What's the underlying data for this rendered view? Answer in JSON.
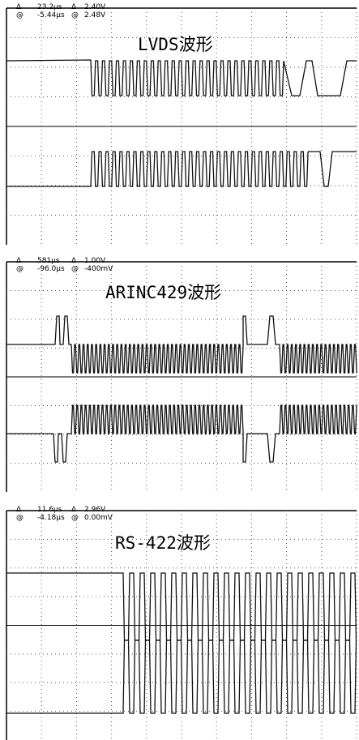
{
  "panels": [
    {
      "readout": [
        [
          "Δ",
          "23.2μs",
          "Δ",
          "2.40V"
        ],
        [
          "@",
          "-5.44μs",
          "@",
          "2.48V"
        ]
      ],
      "title": "LVDS波形"
    },
    {
      "readout": [
        [
          "Δ",
          "581μs",
          "Δ",
          "1.00V"
        ],
        [
          "@",
          "-96.0μs",
          "@",
          "-400mV"
        ]
      ],
      "title": "ARINC429波形"
    },
    {
      "readout": [
        [
          "Δ",
          "11.6μs",
          "Δ",
          "2.96V"
        ],
        [
          "@",
          "-4.18μs",
          "@",
          "0.00mV"
        ]
      ],
      "title": "RS-422波形"
    }
  ]
}
